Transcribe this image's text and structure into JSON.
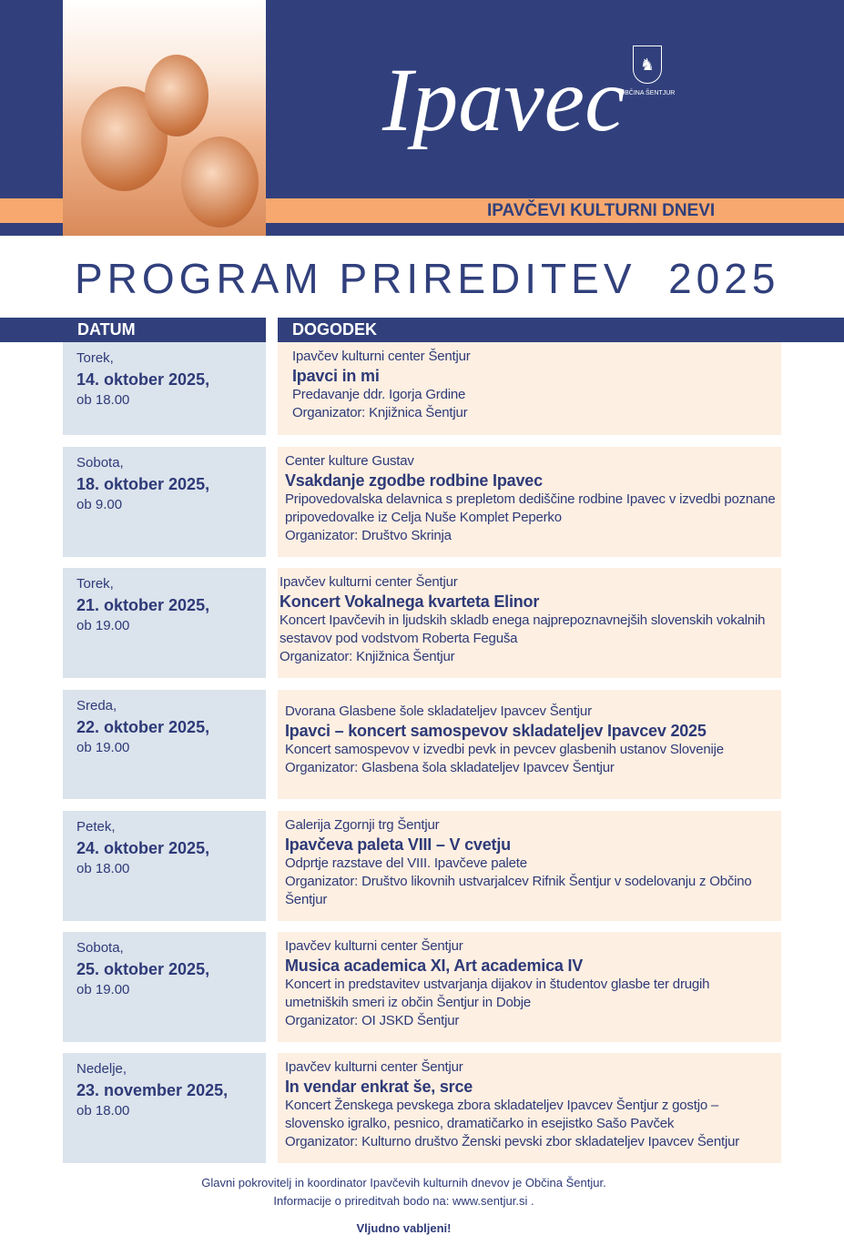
{
  "header": {
    "logo_script": "Ipavec",
    "subtitle": "IPAVČEVI KULTURNI DNEVI",
    "crest_label": "OBČINA ŠENTJUR",
    "title": "PROGRAM PRIREDITEV  2025"
  },
  "table": {
    "col_date": "DATUM",
    "col_event": "DOGODEK"
  },
  "events": [
    {
      "day": "Torek,",
      "date": "14. oktober 2025,",
      "time": "ob 18.00",
      "venue": "Ipavčev kulturni center Šentjur",
      "title": "Ipavci in mi",
      "desc": "Predavanje ddr. Igorja Grdine",
      "org": "Organizator: Knjižnica Šentjur"
    },
    {
      "day": "Sobota,",
      "date": "18. oktober 2025,",
      "time": "ob 9.00",
      "venue": "Center kulture Gustav",
      "title": "Vsakdanje zgodbe rodbine Ipavec",
      "desc": "Pripovedovalska delavnica s prepletom dediščine rodbine Ipavec v izvedbi poznane pripovedovalke iz Celja Nuše Komplet Peperko",
      "org": "Organizator: Društvo Skrinja"
    },
    {
      "day": "Torek,",
      "date": "21. oktober 2025,",
      "time": "ob 19.00",
      "venue": "Ipavčev kulturni center Šentjur",
      "title": "Koncert Vokalnega kvarteta Elinor",
      "desc": "Koncert Ipavčevih in ljudskih skladb enega najprepoznavnejših slovenskih vokalnih sestavov pod vodstvom Roberta Feguša",
      "org": "Organizator: Knjižnica Šentjur"
    },
    {
      "day": "Sreda,",
      "date": "22. oktober 2025,",
      "time": "ob 19.00",
      "venue": "Dvorana Glasbene šole skladateljev Ipavcev Šentjur",
      "title": "Ipavci – koncert samospevov skladateljev Ipavcev 2025",
      "desc": "Koncert samospevov v izvedbi pevk in pevcev glasbenih ustanov Slovenije",
      "org": "Organizator: Glasbena šola skladateljev Ipavcev Šentjur"
    },
    {
      "day": "Petek,",
      "date": "24. oktober 2025,",
      "time": "ob 18.00",
      "venue": "Galerija Zgornji trg Šentjur",
      "title": "Ipavčeva paleta VIII – V cvetju",
      "desc": "Odprtje razstave del VIII. Ipavčeve palete",
      "org": "Organizator: Društvo likovnih ustvarjalcev Rifnik Šentjur v sodelovanju z Občino Šentjur"
    },
    {
      "day": "Sobota,",
      "date": "25. oktober 2025,",
      "time": "ob 19.00",
      "venue": "Ipavčev kulturni center Šentjur",
      "title": "Musica academica XI, Art academica IV",
      "desc": "Koncert in predstavitev ustvarjanja dijakov in študentov glasbe ter drugih umetniških smeri iz občin Šentjur in Dobje",
      "org": "Organizator: OI JSKD Šentjur"
    },
    {
      "day": "Nedelje,",
      "date": "23. november 2025,",
      "time": "ob 18.00",
      "venue": "Ipavčev kulturni center Šentjur",
      "title": "In vendar enkrat še, srce",
      "desc": "Koncert Ženskega pevskega zbora skladateljev Ipavcev Šentjur z gostjo – slovensko igralko, pesnico, dramatičarko in esejistko Sašo Pavček",
      "org": "Organizator: Kulturno društvo Ženski pevski zbor skladateljev Ipavcev Šentjur"
    }
  ],
  "footer": {
    "line1": "Glavni pokrovitelj in koordinator Ipavčevih kulturnih dnevov je Občina Šentjur.",
    "line2": "Informacije o prireditvah bodo na: www.sentjur.si .",
    "invite": "Vljudno vabljeni!"
  }
}
